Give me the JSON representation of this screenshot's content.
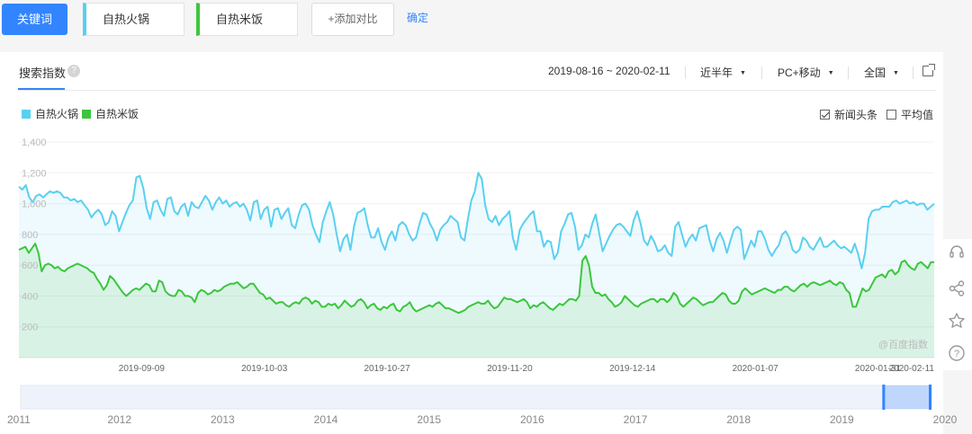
{
  "topbar": {
    "keyword_button": "关键词",
    "terms": [
      "自热火锅",
      "自热米饭"
    ],
    "add_compare": "+添加对比",
    "confirm": "确定"
  },
  "panel": {
    "title": "搜索指数",
    "date_range": "2019-08-16 ~ 2020-02-11",
    "period": "近半年",
    "device": "PC+移动",
    "region": "全国",
    "checkbox_news": "新闻头条",
    "checkbox_avg": "平均值",
    "watermark": "@百度指数"
  },
  "colors": {
    "accent": "#3385ff",
    "series_hotpot": "#5ad0f1",
    "series_rice": "#3cc63c"
  },
  "icons": [
    "help-icon",
    "external-link-icon",
    "headset-icon",
    "share-icon",
    "star-icon",
    "question-icon"
  ],
  "chart_data": {
    "type": "area",
    "title": "",
    "xlabel": "",
    "ylabel": "",
    "ylim": [
      0,
      1400
    ],
    "yticks": [
      200,
      400,
      600,
      800,
      "1,000",
      "1,200",
      "1,400"
    ],
    "xticks": [
      "2019-09-09",
      "2019-10-03",
      "2019-10-27",
      "2019-11-20",
      "2019-12-14",
      "2020-01-07",
      "2020-01-31",
      "2020-02-11"
    ],
    "x_start": "2019-08-16",
    "x_end": "2020-02-11",
    "grid": true,
    "legend_position": "top-left",
    "series": [
      {
        "name": "自热火锅",
        "color": "#5ad0f1",
        "values": [
          1110,
          1090,
          1120,
          1040,
          1010,
          1050,
          1060,
          1040,
          1060,
          1080,
          1070,
          1080,
          1070,
          1040,
          1040,
          1020,
          1030,
          1010,
          1020,
          990,
          960,
          910,
          940,
          960,
          930,
          860,
          880,
          950,
          920,
          820,
          880,
          940,
          990,
          1020,
          1170,
          1180,
          1100,
          970,
          900,
          1010,
          1020,
          960,
          920,
          1030,
          1040,
          950,
          930,
          980,
          1000,
          920,
          1010,
          980,
          970,
          1010,
          1050,
          1020,
          960,
          1010,
          1040,
          1000,
          1020,
          980,
          1000,
          1010,
          980,
          1000,
          960,
          890,
          1010,
          1020,
          900,
          960,
          980,
          850,
          960,
          970,
          900,
          940,
          970,
          860,
          840,
          930,
          990,
          1000,
          960,
          860,
          800,
          750,
          880,
          950,
          1010,
          930,
          800,
          690,
          770,
          800,
          700,
          850,
          940,
          950,
          970,
          860,
          780,
          780,
          840,
          750,
          700,
          780,
          820,
          760,
          860,
          880,
          860,
          800,
          760,
          780,
          870,
          940,
          930,
          870,
          830,
          760,
          830,
          860,
          880,
          920,
          900,
          880,
          780,
          760,
          900,
          1020,
          1080,
          1200,
          1160,
          990,
          900,
          880,
          920,
          860,
          900,
          920,
          950,
          780,
          700,
          830,
          870,
          900,
          930,
          950,
          820,
          820,
          720,
          760,
          750,
          640,
          680,
          820,
          870,
          930,
          940,
          850,
          700,
          730,
          800,
          780,
          870,
          930,
          810,
          690,
          740,
          790,
          830,
          860,
          870,
          850,
          820,
          790,
          890,
          950,
          870,
          760,
          730,
          790,
          750,
          690,
          700,
          730,
          680,
          660,
          850,
          880,
          800,
          720,
          770,
          800,
          760,
          840,
          850,
          860,
          760,
          690,
          770,
          810,
          760,
          680,
          760,
          830,
          850,
          830,
          640,
          700,
          760,
          720,
          820,
          820,
          770,
          700,
          660,
          700,
          730,
          800,
          820,
          780,
          700,
          680,
          700,
          780,
          760,
          720,
          700,
          740,
          780,
          720,
          720,
          740,
          760,
          730,
          710,
          720,
          700,
          680,
          740,
          670,
          580,
          680,
          900,
          950,
          960,
          960,
          980,
          980,
          980,
          1010,
          1020,
          1000,
          1010,
          1020,
          1000,
          1010,
          990,
          1000,
          1000,
          960,
          980,
          1000
        ],
        "note": "none"
      },
      {
        "name": "自热米饭",
        "color": "#3cc63c",
        "values": [
          700,
          710,
          720,
          680,
          710,
          740,
          680,
          560,
          600,
          610,
          600,
          580,
          590,
          570,
          560,
          580,
          590,
          600,
          610,
          600,
          590,
          580,
          560,
          550,
          510,
          480,
          440,
          470,
          530,
          510,
          480,
          450,
          420,
          400,
          420,
          440,
          450,
          440,
          460,
          480,
          470,
          430,
          430,
          500,
          490,
          430,
          410,
          400,
          400,
          440,
          430,
          400,
          400,
          390,
          360,
          420,
          440,
          430,
          410,
          420,
          440,
          430,
          440,
          460,
          470,
          480,
          480,
          490,
          470,
          450,
          460,
          480,
          480,
          450,
          420,
          410,
          380,
          390,
          370,
          350,
          360,
          360,
          340,
          330,
          350,
          360,
          350,
          380,
          390,
          380,
          350,
          370,
          360,
          330,
          330,
          350,
          340,
          350,
          320,
          340,
          370,
          350,
          330,
          340,
          370,
          380,
          360,
          320,
          340,
          350,
          320,
          310,
          330,
          320,
          340,
          350,
          310,
          300,
          330,
          340,
          360,
          320,
          300,
          310,
          320,
          330,
          340,
          330,
          350,
          360,
          340,
          320,
          320,
          310,
          300,
          290,
          300,
          310,
          330,
          340,
          350,
          360,
          350,
          350,
          370,
          340,
          320,
          330,
          360,
          390,
          380,
          380,
          370,
          360,
          370,
          380,
          360,
          320,
          340,
          330,
          350,
          360,
          340,
          320,
          310,
          330,
          350,
          340,
          360,
          380,
          380,
          370,
          400,
          630,
          660,
          600,
          460,
          420,
          420,
          400,
          410,
          380,
          360,
          330,
          340,
          360,
          400,
          380,
          360,
          340,
          330,
          350,
          360,
          370,
          380,
          380,
          360,
          380,
          380,
          360,
          380,
          420,
          400,
          350,
          330,
          350,
          370,
          390,
          380,
          360,
          340,
          350,
          360,
          360,
          380,
          400,
          420,
          410,
          370,
          350,
          350,
          370,
          430,
          450,
          430,
          410,
          420,
          430,
          440,
          450,
          440,
          430,
          420,
          440,
          440,
          460,
          460,
          440,
          430,
          450,
          470,
          480,
          460,
          480,
          490,
          480,
          470,
          480,
          490,
          500,
          480,
          470,
          490,
          480,
          440,
          420,
          330,
          330,
          390,
          450,
          430,
          440,
          480,
          520,
          530,
          540,
          520,
          560,
          570,
          540,
          560,
          620,
          630,
          600,
          580,
          570,
          610,
          620,
          600,
          580,
          620,
          620
        ]
      }
    ],
    "navigator": {
      "years": [
        "2011",
        "2012",
        "2013",
        "2014",
        "2015",
        "2016",
        "2017",
        "2018",
        "2019",
        "2020"
      ],
      "selection_fraction": [
        0.946,
        1.0
      ]
    }
  }
}
